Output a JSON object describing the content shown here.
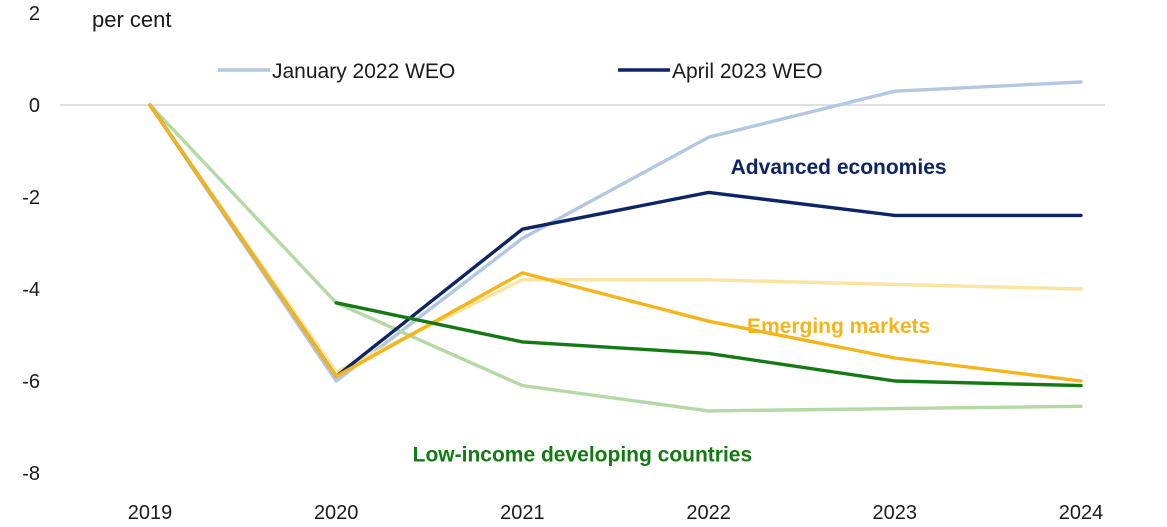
{
  "chart_data": {
    "type": "line",
    "unit_label": "per cent",
    "x": [
      "2019",
      "2020",
      "2021",
      "2022",
      "2023",
      "2024"
    ],
    "ylim": [
      -8,
      2
    ],
    "yticks": [
      "2",
      "0",
      "-2",
      "-4",
      "-6",
      "-8"
    ],
    "ytick_values": [
      2,
      0,
      -2,
      -4,
      -6,
      -8
    ],
    "grid": "zero line only",
    "legend": [
      {
        "label": "January 2022 WEO",
        "color": "#b4c7e2"
      },
      {
        "label": "April 2023 WEO",
        "color": "#0d2465"
      }
    ],
    "legend_position": "top",
    "series": [
      {
        "group": "Advanced economies",
        "vintage": "January 2022 WEO",
        "color": "#b4c7e2",
        "values": [
          0,
          -6.0,
          -2.9,
          -0.7,
          0.3,
          0.5
        ]
      },
      {
        "group": "Advanced economies",
        "vintage": "April 2023 WEO",
        "color": "#0d2465",
        "values": [
          0,
          -5.9,
          -2.7,
          -1.9,
          -2.4,
          -2.4
        ]
      },
      {
        "group": "Emerging markets",
        "vintage": "January 2022 WEO",
        "color": "#fbe3a0",
        "values": [
          0,
          -5.8,
          -3.8,
          -3.8,
          -3.9,
          -4.0
        ]
      },
      {
        "group": "Emerging markets",
        "vintage": "April 2023 WEO",
        "color": "#f5b51a",
        "values": [
          0,
          -5.9,
          -3.65,
          -4.7,
          -5.5,
          -6.0
        ]
      },
      {
        "group": "Low-income developing countries",
        "vintage": "January 2022 WEO",
        "color": "#b5d9a4",
        "values": [
          0,
          -4.3,
          -6.1,
          -6.65,
          -6.6,
          -6.55
        ]
      },
      {
        "group": "Low-income developing countries",
        "vintage": "April 2023 WEO",
        "color": "#137a13",
        "values": [
          null,
          -4.3,
          -5.15,
          -5.4,
          -6.0,
          -6.1
        ]
      }
    ],
    "annotations": [
      {
        "text": "Advanced economies",
        "color": "#0d2465",
        "anchor_x": "2022",
        "anchor_y": -1.35
      },
      {
        "text": "Emerging markets",
        "color": "#f5b51a",
        "anchor_x": "2022",
        "anchor_y": -4.8
      },
      {
        "text": "Low-income developing countries",
        "color": "#137a13",
        "anchor_x": "2021",
        "anchor_y": -7.6
      }
    ]
  }
}
